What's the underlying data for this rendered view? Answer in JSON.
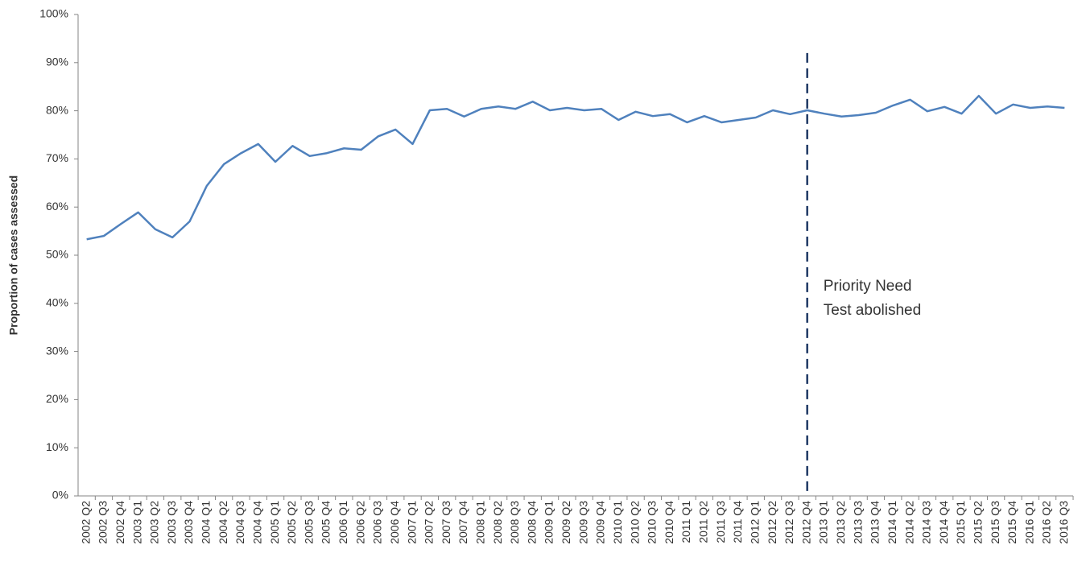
{
  "chart_data": {
    "type": "line",
    "y_label": "Proportion of cases assessed",
    "categories": [
      "2002 Q2",
      "2002 Q3",
      "2002 Q4",
      "2003 Q1",
      "2003 Q2",
      "2003 Q3",
      "2003 Q4",
      "2004 Q1",
      "2004 Q2",
      "2004 Q3",
      "2004 Q4",
      "2005 Q1",
      "2005 Q2",
      "2005 Q3",
      "2005 Q4",
      "2006 Q1",
      "2006 Q2",
      "2006 Q3",
      "2006 Q4",
      "2007 Q1",
      "2007 Q2",
      "2007 Q3",
      "2007 Q4",
      "2008 Q1",
      "2008 Q2",
      "2008 Q3",
      "2008 Q4",
      "2009 Q1",
      "2009 Q2",
      "2009 Q3",
      "2009 Q4",
      "2010 Q1",
      "2010 Q2",
      "2010 Q3",
      "2010 Q4",
      "2011 Q1",
      "2011 Q2",
      "2011 Q3",
      "2011 Q4",
      "2012 Q1",
      "2012 Q2",
      "2012 Q3",
      "2012 Q4",
      "2013 Q1",
      "2013 Q2",
      "2013 Q3",
      "2013 Q4",
      "2014 Q1",
      "2014 Q2",
      "2014 Q3",
      "2014 Q4",
      "2015 Q1",
      "2015 Q2",
      "2015 Q3",
      "2015 Q4",
      "2016 Q1",
      "2016 Q2",
      "2016 Q3"
    ],
    "values": [
      53.3,
      54.0,
      56.5,
      58.9,
      55.4,
      53.7,
      57.0,
      64.4,
      68.9,
      71.2,
      73.1,
      69.4,
      72.7,
      70.6,
      71.2,
      72.2,
      71.9,
      74.7,
      76.1,
      73.1,
      80.1,
      80.4,
      78.8,
      80.4,
      80.9,
      80.4,
      81.9,
      80.1,
      80.6,
      80.1,
      80.4,
      78.1,
      79.8,
      78.9,
      79.3,
      77.6,
      78.9,
      77.6,
      78.1,
      78.6,
      80.1,
      79.3,
      80.1,
      79.4,
      78.8,
      79.1,
      79.6,
      81.1,
      82.3,
      79.9,
      80.8,
      79.4,
      83.1,
      79.4,
      81.3,
      80.6,
      80.9,
      80.6
    ],
    "color": "#4f81bd",
    "ylim": [
      0,
      100
    ],
    "yticks": [
      {
        "value": 0,
        "label": "0%"
      },
      {
        "value": 10,
        "label": "10%"
      },
      {
        "value": 20,
        "label": "20%"
      },
      {
        "value": 30,
        "label": "30%"
      },
      {
        "value": 40,
        "label": "40%"
      },
      {
        "value": 50,
        "label": "50%"
      },
      {
        "value": 60,
        "label": "60%"
      },
      {
        "value": 70,
        "label": "70%"
      },
      {
        "value": 80,
        "label": "80%"
      },
      {
        "value": 90,
        "label": "90%"
      },
      {
        "value": 100,
        "label": "100%"
      }
    ],
    "grid": false,
    "marker_category": "2012 Q4",
    "marker_color": "#1f3864",
    "annotation": [
      "Priority Need",
      "Test abolished"
    ]
  }
}
